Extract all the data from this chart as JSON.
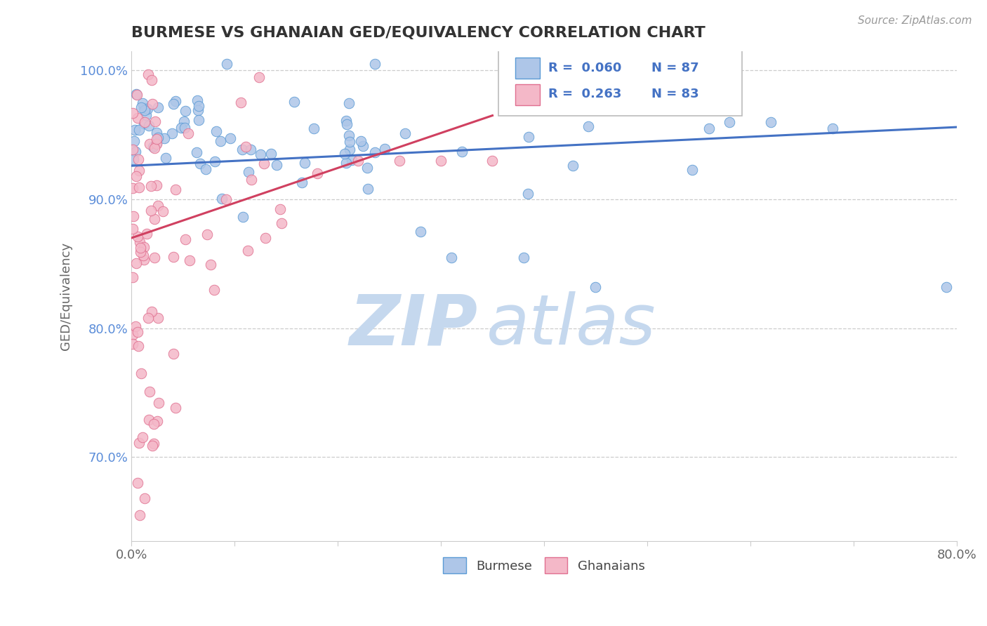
{
  "title": "BURMESE VS GHANAIAN GED/EQUIVALENCY CORRELATION CHART",
  "source_text": "Source: ZipAtlas.com",
  "ylabel": "GED/Equivalency",
  "xlim": [
    0.0,
    0.8
  ],
  "ylim": [
    0.635,
    1.015
  ],
  "burmese_color": "#aec6e8",
  "burmese_edge": "#5b9bd5",
  "ghanaian_color": "#f4b8c8",
  "ghanaian_edge": "#e07090",
  "blue_line_color": "#4472c4",
  "pink_line_color": "#d04060",
  "legend_R_blue": "R =  0.060",
  "legend_N_blue": "N = 87",
  "legend_R_pink": "R =  0.263",
  "legend_N_pink": "N = 83",
  "watermark_zip": "ZIP",
  "watermark_atlas": "atlas",
  "watermark_color": "#c5d8ee",
  "background": "#ffffff",
  "grid_color": "#cccccc",
  "ytick_color": "#5b8dd9",
  "xtick_color": "#666666"
}
